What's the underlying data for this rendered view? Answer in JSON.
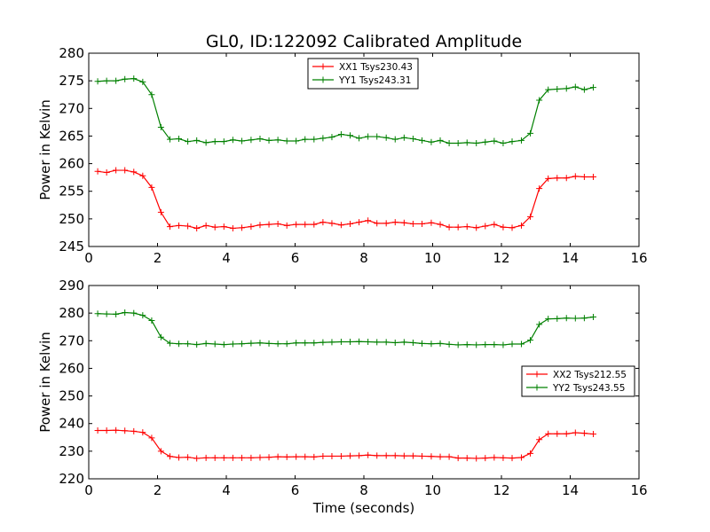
{
  "figure": {
    "title": "GL0, ID:122092 Calibrated Amplitude"
  },
  "chart_data": [
    {
      "type": "line",
      "xlabel": "",
      "ylabel": "Power in Kelvin",
      "xlim": [
        0,
        16
      ],
      "ylim": [
        245,
        280
      ],
      "x_ticks": [
        "0",
        "2",
        "4",
        "6",
        "8",
        "10",
        "12",
        "14",
        "16"
      ],
      "y_ticks": [
        "245",
        "250",
        "255",
        "260",
        "265",
        "270",
        "275",
        "280"
      ],
      "legend_position": "top-center",
      "grid": false,
      "series": [
        {
          "name": "XX1 Tsys230.43",
          "color": "#ff0000",
          "x": [
            0.26,
            0.52,
            0.79,
            1.05,
            1.31,
            1.57,
            1.83,
            2.1,
            2.36,
            2.62,
            2.88,
            3.14,
            3.41,
            3.67,
            3.93,
            4.19,
            4.45,
            4.72,
            4.98,
            5.24,
            5.5,
            5.76,
            6.03,
            6.29,
            6.55,
            6.81,
            7.07,
            7.34,
            7.6,
            7.86,
            8.12,
            8.38,
            8.65,
            8.91,
            9.17,
            9.43,
            9.69,
            9.96,
            10.22,
            10.48,
            10.74,
            11.0,
            11.27,
            11.53,
            11.79,
            12.05,
            12.31,
            12.58,
            12.84,
            13.1,
            13.36,
            13.62,
            13.89,
            14.15,
            14.41,
            14.67
          ],
          "y": [
            258.6,
            258.4,
            258.8,
            258.8,
            258.5,
            257.8,
            255.7,
            251.2,
            248.6,
            248.8,
            248.7,
            248.3,
            248.8,
            248.5,
            248.6,
            248.3,
            248.4,
            248.6,
            248.9,
            249.0,
            249.1,
            248.8,
            249.0,
            249.0,
            249.0,
            249.4,
            249.2,
            248.9,
            249.1,
            249.4,
            249.7,
            249.2,
            249.2,
            249.4,
            249.3,
            249.1,
            249.1,
            249.3,
            249.0,
            248.5,
            248.5,
            248.6,
            248.4,
            248.7,
            249.0,
            248.5,
            248.4,
            248.8,
            250.4,
            255.5,
            257.3,
            257.4,
            257.4,
            257.7,
            257.6,
            257.6
          ]
        },
        {
          "name": "YY1 Tsys243.31",
          "color": "#008000",
          "x": [
            0.26,
            0.52,
            0.79,
            1.05,
            1.31,
            1.57,
            1.83,
            2.1,
            2.36,
            2.62,
            2.88,
            3.14,
            3.41,
            3.67,
            3.93,
            4.19,
            4.45,
            4.72,
            4.98,
            5.24,
            5.5,
            5.76,
            6.03,
            6.29,
            6.55,
            6.81,
            7.07,
            7.34,
            7.6,
            7.86,
            8.12,
            8.38,
            8.65,
            8.91,
            9.17,
            9.43,
            9.69,
            9.96,
            10.22,
            10.48,
            10.74,
            11.0,
            11.27,
            11.53,
            11.79,
            12.05,
            12.31,
            12.58,
            12.84,
            13.1,
            13.36,
            13.62,
            13.89,
            14.15,
            14.41,
            14.67
          ],
          "y": [
            274.9,
            275.0,
            275.0,
            275.3,
            275.4,
            274.8,
            272.5,
            266.6,
            264.4,
            264.5,
            264.0,
            264.2,
            263.8,
            264.0,
            264.0,
            264.3,
            264.1,
            264.3,
            264.5,
            264.2,
            264.3,
            264.1,
            264.1,
            264.4,
            264.4,
            264.6,
            264.8,
            265.3,
            265.1,
            264.6,
            264.9,
            264.9,
            264.7,
            264.4,
            264.7,
            264.5,
            264.2,
            263.9,
            264.2,
            263.7,
            263.7,
            263.8,
            263.7,
            263.9,
            264.1,
            263.7,
            264.0,
            264.2,
            265.5,
            271.5,
            273.4,
            273.5,
            273.6,
            273.9,
            273.4,
            273.8
          ]
        }
      ]
    },
    {
      "type": "line",
      "xlabel": "Time (seconds)",
      "ylabel": "Power in Kelvin",
      "xlim": [
        0,
        16
      ],
      "ylim": [
        220,
        290
      ],
      "x_ticks": [
        "0",
        "2",
        "4",
        "6",
        "8",
        "10",
        "12",
        "14",
        "16"
      ],
      "y_ticks": [
        "220",
        "230",
        "240",
        "250",
        "260",
        "270",
        "280",
        "290"
      ],
      "legend_position": "center-right",
      "grid": false,
      "series": [
        {
          "name": "XX2 Tsys212.55",
          "color": "#ff0000",
          "x": [
            0.26,
            0.52,
            0.79,
            1.05,
            1.31,
            1.57,
            1.83,
            2.1,
            2.36,
            2.62,
            2.88,
            3.14,
            3.41,
            3.67,
            3.93,
            4.19,
            4.45,
            4.72,
            4.98,
            5.24,
            5.5,
            5.76,
            6.03,
            6.29,
            6.55,
            6.81,
            7.07,
            7.34,
            7.6,
            7.86,
            8.12,
            8.38,
            8.65,
            8.91,
            9.17,
            9.43,
            9.69,
            9.96,
            10.22,
            10.48,
            10.74,
            11.0,
            11.27,
            11.53,
            11.79,
            12.05,
            12.31,
            12.58,
            12.84,
            13.1,
            13.36,
            13.62,
            13.89,
            14.15,
            14.41,
            14.67
          ],
          "y": [
            237.5,
            237.5,
            237.6,
            237.4,
            237.2,
            236.8,
            234.8,
            230.0,
            228.1,
            227.7,
            227.8,
            227.4,
            227.6,
            227.6,
            227.6,
            227.6,
            227.6,
            227.6,
            227.7,
            227.8,
            228.0,
            227.9,
            228.0,
            228.0,
            227.9,
            228.2,
            228.2,
            228.2,
            228.3,
            228.4,
            228.6,
            228.4,
            228.4,
            228.4,
            228.3,
            228.3,
            228.2,
            228.1,
            228.0,
            228.0,
            227.5,
            227.5,
            227.4,
            227.5,
            227.7,
            227.6,
            227.5,
            227.7,
            229.2,
            234.2,
            236.3,
            236.3,
            236.3,
            236.7,
            236.5,
            236.2
          ]
        },
        {
          "name": "YY2 Tsys243.55",
          "color": "#008000",
          "x": [
            0.26,
            0.52,
            0.79,
            1.05,
            1.31,
            1.57,
            1.83,
            2.1,
            2.36,
            2.62,
            2.88,
            3.14,
            3.41,
            3.67,
            3.93,
            4.19,
            4.45,
            4.72,
            4.98,
            5.24,
            5.5,
            5.76,
            6.03,
            6.29,
            6.55,
            6.81,
            7.07,
            7.34,
            7.6,
            7.86,
            8.12,
            8.38,
            8.65,
            8.91,
            9.17,
            9.43,
            9.69,
            9.96,
            10.22,
            10.48,
            10.74,
            11.0,
            11.27,
            11.53,
            11.79,
            12.05,
            12.31,
            12.58,
            12.84,
            13.1,
            13.36,
            13.62,
            13.89,
            14.15,
            14.41,
            14.67
          ],
          "y": [
            279.8,
            279.7,
            279.6,
            280.2,
            280.0,
            279.2,
            277.3,
            271.3,
            269.1,
            268.9,
            268.9,
            268.6,
            269.0,
            268.8,
            268.6,
            268.8,
            268.9,
            269.1,
            269.2,
            269.0,
            268.9,
            268.9,
            269.2,
            269.2,
            269.2,
            269.4,
            269.5,
            269.6,
            269.6,
            269.7,
            269.6,
            269.5,
            269.5,
            269.3,
            269.5,
            269.3,
            269.0,
            268.9,
            269.0,
            268.7,
            268.5,
            268.6,
            268.5,
            268.6,
            268.6,
            268.5,
            268.8,
            268.8,
            270.2,
            275.9,
            277.9,
            278.0,
            278.2,
            278.1,
            278.2,
            278.6
          ]
        }
      ]
    }
  ]
}
